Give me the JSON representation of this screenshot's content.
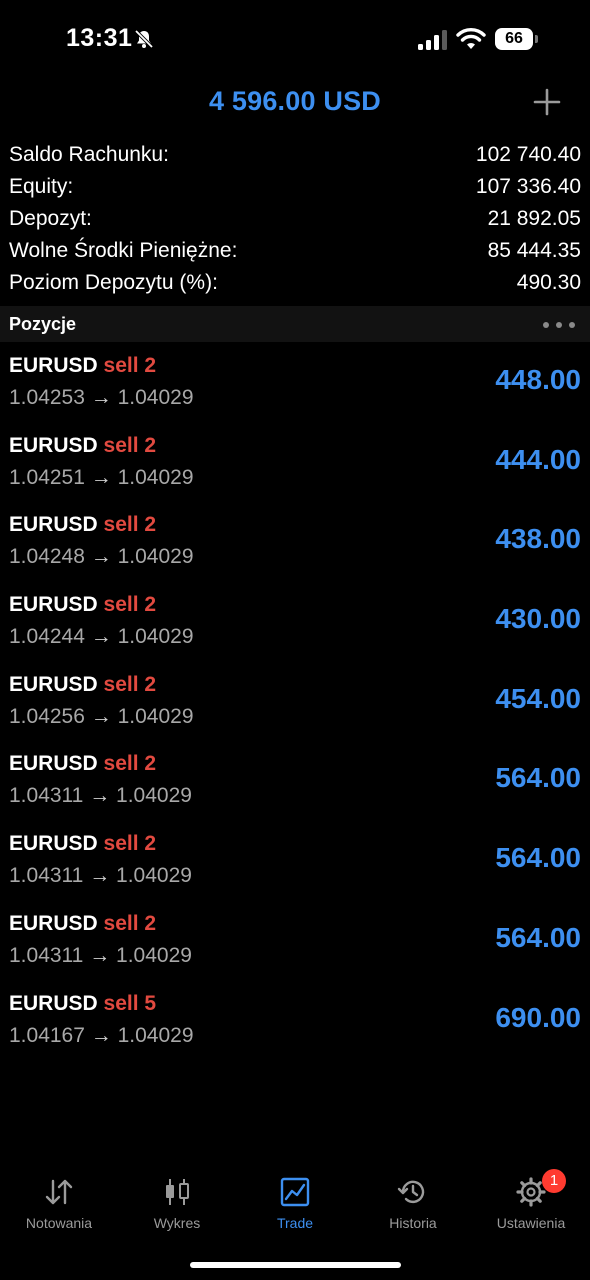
{
  "status_bar": {
    "time": "13:31",
    "battery": "66"
  },
  "header": {
    "title": "4 596.00 USD"
  },
  "account": [
    {
      "label": "Saldo Rachunku:",
      "value": "102 740.40"
    },
    {
      "label": "Equity:",
      "value": "107 336.40"
    },
    {
      "label": "Depozyt:",
      "value": "21 892.05"
    },
    {
      "label": "Wolne Środki Pieniężne:",
      "value": "85 444.35"
    },
    {
      "label": "Poziom Depozytu (%):",
      "value": "490.30"
    }
  ],
  "positions_section": {
    "title": "Pozycje"
  },
  "positions": [
    {
      "symbol": "EURUSD",
      "side": "sell 2",
      "open_price": "1.04253",
      "arrow": "→",
      "current_price": "1.04029",
      "profit": "448.00"
    },
    {
      "symbol": "EURUSD",
      "side": "sell 2",
      "open_price": "1.04251",
      "arrow": "→",
      "current_price": "1.04029",
      "profit": "444.00"
    },
    {
      "symbol": "EURUSD",
      "side": "sell 2",
      "open_price": "1.04248",
      "arrow": "→",
      "current_price": "1.04029",
      "profit": "438.00"
    },
    {
      "symbol": "EURUSD",
      "side": "sell 2",
      "open_price": "1.04244",
      "arrow": "→",
      "current_price": "1.04029",
      "profit": "430.00"
    },
    {
      "symbol": "EURUSD",
      "side": "sell 2",
      "open_price": "1.04256",
      "arrow": "→",
      "current_price": "1.04029",
      "profit": "454.00"
    },
    {
      "symbol": "EURUSD",
      "side": "sell 2",
      "open_price": "1.04311",
      "arrow": "→",
      "current_price": "1.04029",
      "profit": "564.00"
    },
    {
      "symbol": "EURUSD",
      "side": "sell 2",
      "open_price": "1.04311",
      "arrow": "→",
      "current_price": "1.04029",
      "profit": "564.00"
    },
    {
      "symbol": "EURUSD",
      "side": "sell 2",
      "open_price": "1.04311",
      "arrow": "→",
      "current_price": "1.04029",
      "profit": "564.00"
    },
    {
      "symbol": "EURUSD",
      "side": "sell 5",
      "open_price": "1.04167",
      "arrow": "→",
      "current_price": "1.04029",
      "profit": "690.00"
    }
  ],
  "tabbar": {
    "tabs": [
      {
        "label": "Notowania",
        "icon": "quotes-arrows-icon"
      },
      {
        "label": "Wykres",
        "icon": "candlestick-chart-icon"
      },
      {
        "label": "Trade",
        "icon": "trade-chart-icon",
        "active": true
      },
      {
        "label": "Historia",
        "icon": "history-clock-icon"
      },
      {
        "label": "Ustawienia",
        "icon": "gear-icon",
        "badge": "1"
      }
    ]
  },
  "colors": {
    "accent": "#3d8ff0",
    "sell": "#e24a40",
    "background": "#000000",
    "badge": "#ff3b30"
  }
}
